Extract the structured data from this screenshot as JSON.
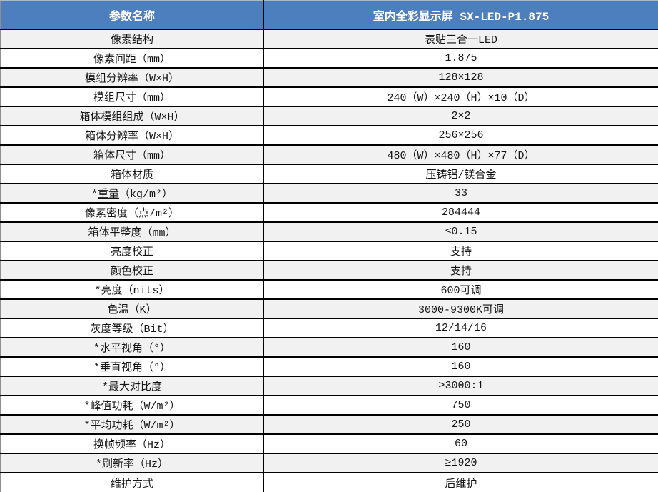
{
  "colors": {
    "header_bg": "#4d7ebd",
    "header_text": "#ffffff",
    "stripe_row_bg": "#f1f1f1",
    "row_bg": "#ffffff",
    "border": "#000000"
  },
  "table": {
    "header": {
      "param_col": "参数名称",
      "value_col": "室内全彩显示屏 SX-LED-P1.875"
    },
    "rows": [
      {
        "label": "像素结构",
        "value": "表贴三合一LED"
      },
      {
        "label": "像素间距（mm）",
        "value": "1.875"
      },
      {
        "label": "模组分辨率（W×H）",
        "value": "128×128"
      },
      {
        "label": "模组尺寸（mm）",
        "value": "240（W）×240（H）×10（D）"
      },
      {
        "label": "箱体模组组成（W×H）",
        "value": "2×2"
      },
      {
        "label": "箱体分辨率（W×H）",
        "value": "256×256"
      },
      {
        "label": "箱体尺寸（mm）",
        "value": "480（W）×480（H）×77（D）"
      },
      {
        "label": "箱体材质",
        "value": "压铸铝/镁合金"
      },
      {
        "label": "*重量（kg/m²）",
        "value": "33",
        "underline": "重量"
      },
      {
        "label": "像素密度（点/m²）",
        "value": "284444"
      },
      {
        "label": "箱体平整度（mm）",
        "value": "≤0.15"
      },
      {
        "label": "亮度校正",
        "value": "支持"
      },
      {
        "label": "颜色校正",
        "value": "支持"
      },
      {
        "label": "*亮度（nits）",
        "value": "600可调"
      },
      {
        "label": "色温（K）",
        "value": "3000-9300K可调"
      },
      {
        "label": "灰度等级（Bit）",
        "value": "12/14/16"
      },
      {
        "label": "*水平视角（°）",
        "value": "160"
      },
      {
        "label": "*垂直视角（°）",
        "value": "160"
      },
      {
        "label": "*最大对比度",
        "value": "≥3000:1"
      },
      {
        "label": "*峰值功耗（W/m²）",
        "value": "750"
      },
      {
        "label": "*平均功耗（W/m²）",
        "value": "250"
      },
      {
        "label": "换帧频率（Hz）",
        "value": "60"
      },
      {
        "label": "*刷新率（Hz）",
        "value": "≥1920"
      },
      {
        "label": "维护方式",
        "value": "后维护"
      }
    ]
  }
}
